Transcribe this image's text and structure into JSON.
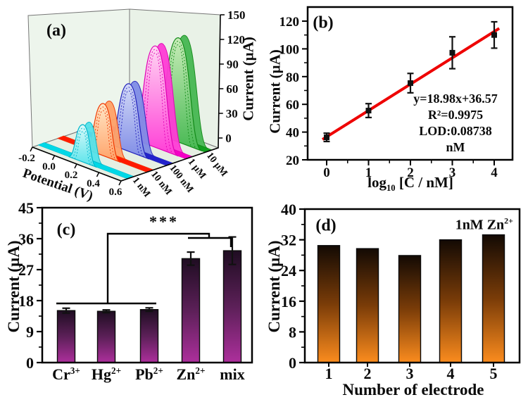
{
  "figure_title": "Electrochemical Zn detection figure",
  "accent_colors": {
    "fit_line": "#ee0000",
    "error_bar": "#111111",
    "frame": "#000000"
  },
  "chart_data": [
    {
      "id": "a",
      "type": "area",
      "is_3d_waterfall": true,
      "title": "(a)",
      "xlabel": "Potential (V)",
      "zlabel": "Current (µA)",
      "x_ticks": [
        "-0.2",
        "0.0",
        "0.2",
        "0.4",
        "0.6"
      ],
      "z_ticks": [
        "0",
        "30",
        "60",
        "90",
        "120",
        "150"
      ],
      "zlim": [
        0,
        150
      ],
      "wall_color": "#edf5ec",
      "series": [
        {
          "name": "1 nM",
          "peak_current_uA": 45,
          "color": "#00b8cc",
          "strip": "#00d8e6",
          "deep": "#55e3ea",
          "light": "#dcfafa"
        },
        {
          "name": "10 nM",
          "peak_current_uA": 63,
          "color": "#f03800",
          "strip": "#ff1a00",
          "deep": "#ffa268",
          "light": "#ffe6c6"
        },
        {
          "name": "100 nM",
          "peak_current_uA": 82,
          "color": "#2222bb",
          "strip": "#2222cc",
          "deep": "#7f8ce6",
          "light": "#d3d9f7"
        },
        {
          "name": "1 µM",
          "peak_current_uA": 123,
          "color": "#e000b4",
          "strip": "#f400c6",
          "deep": "#ff3cd6",
          "light": "#ffd6f3"
        },
        {
          "name": "10 µM",
          "peak_current_uA": 127,
          "color": "#128a18",
          "strip": "#12a01e",
          "deep": "#46b852",
          "light": "#c8ecb8"
        }
      ]
    },
    {
      "id": "b",
      "type": "scatter",
      "title": "(b)",
      "ylabel": "Current (µA)",
      "xlabel_parts": {
        "base": "log",
        "sub": "10",
        "rest": " [C / nM]"
      },
      "x": [
        0,
        1,
        2,
        3,
        4
      ],
      "y": [
        36.2,
        55.5,
        75.3,
        97.2,
        110
      ],
      "yerr": [
        3,
        5,
        7,
        11.5,
        9.5
      ],
      "xticks": [
        "0",
        "1",
        "2",
        "3",
        "4"
      ],
      "yticks": [
        "20",
        "40",
        "60",
        "80",
        "100",
        "120"
      ],
      "xlim": [
        -0.45,
        4.45
      ],
      "ylim": [
        20,
        130
      ],
      "fit": {
        "slope": 18.98,
        "intercept": 36.57,
        "x_start": -0.1,
        "x_end": 4.12,
        "color": "#ee0000"
      },
      "annotations": [
        "y=18.98x+36.57",
        "R²=0.9975",
        "LOD:0.08738 nM"
      ],
      "marker_color": "#111111"
    },
    {
      "id": "c",
      "type": "bar",
      "title": "(c)",
      "ylabel": "Current (µA)",
      "categories": [
        {
          "base": "Cr",
          "sup": "3+"
        },
        {
          "base": "Hg",
          "sup": "2+"
        },
        {
          "base": "Pb",
          "sup": "2+"
        },
        {
          "base": "Zn",
          "sup": "2+"
        },
        {
          "base": "mix",
          "sup": ""
        }
      ],
      "values": [
        15.1,
        14.9,
        15.4,
        30.2,
        32.5
      ],
      "errors": [
        0.7,
        0.4,
        0.5,
        1.9,
        4.0
      ],
      "yticks": [
        "0",
        "9",
        "18",
        "27",
        "36",
        "45"
      ],
      "ylim": [
        0,
        45
      ],
      "significance": "***",
      "bar_top": "#1f0d22",
      "bar_mid": "#5c2058",
      "bar_bottom": "#ad2f9c"
    },
    {
      "id": "d",
      "type": "bar",
      "title": "(d)",
      "ylabel": "Current (µA)",
      "xlabel": "Number of electrode",
      "categories": [
        "1",
        "2",
        "3",
        "4",
        "5"
      ],
      "values": [
        30.5,
        29.7,
        27.9,
        32.0,
        33.3
      ],
      "yticks": [
        "0",
        "8",
        "16",
        "24",
        "32",
        "40"
      ],
      "ylim": [
        0,
        40
      ],
      "annotation": {
        "base": "1nM Zn",
        "sup": "2+"
      },
      "bar_top": "#130a04",
      "bar_mid": "#7a3c08",
      "bar_bottom": "#fb8c1e"
    }
  ]
}
